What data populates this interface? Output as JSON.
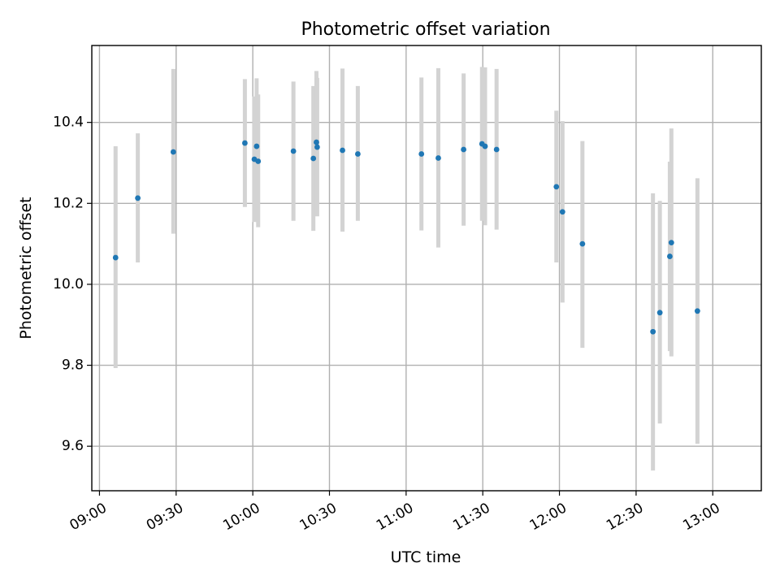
{
  "chart_data": {
    "type": "scatter",
    "title": "Photometric offset variation",
    "xlabel": "UTC time",
    "ylabel": "Photometric offset",
    "grid": true,
    "xlim_minutes": [
      537,
      799
    ],
    "ylim": [
      9.49,
      10.59
    ],
    "x_ticks": [
      {
        "minutes": 540,
        "label": "09:00"
      },
      {
        "minutes": 570,
        "label": "09:30"
      },
      {
        "minutes": 600,
        "label": "10:00"
      },
      {
        "minutes": 630,
        "label": "10:30"
      },
      {
        "minutes": 660,
        "label": "11:00"
      },
      {
        "minutes": 690,
        "label": "11:30"
      },
      {
        "minutes": 720,
        "label": "12:00"
      },
      {
        "minutes": 750,
        "label": "12:30"
      },
      {
        "minutes": 780,
        "label": "13:00"
      }
    ],
    "y_ticks": [
      {
        "value": 9.6,
        "label": "9.6"
      },
      {
        "value": 9.8,
        "label": "9.8"
      },
      {
        "value": 10.0,
        "label": "10.0"
      },
      {
        "value": 10.2,
        "label": "10.2"
      },
      {
        "value": 10.4,
        "label": "10.4"
      }
    ],
    "colors": {
      "point": "#1f77b4",
      "errorbar": "#d3d3d3",
      "grid": "#b0b0b0",
      "axes": "#000000"
    },
    "series": [
      {
        "name": "offset",
        "points": [
          {
            "t": 546.3,
            "y": 10.066,
            "lo": 9.793,
            "hi": 10.341
          },
          {
            "t": 555.0,
            "y": 10.213,
            "lo": 10.054,
            "hi": 10.373
          },
          {
            "t": 568.9,
            "y": 10.327,
            "lo": 10.125,
            "hi": 10.532
          },
          {
            "t": 596.9,
            "y": 10.349,
            "lo": 10.191,
            "hi": 10.507
          },
          {
            "t": 600.6,
            "y": 10.309,
            "lo": 10.154,
            "hi": 10.464
          },
          {
            "t": 601.5,
            "y": 10.341,
            "lo": 10.173,
            "hi": 10.509
          },
          {
            "t": 602.1,
            "y": 10.304,
            "lo": 10.141,
            "hi": 10.469
          },
          {
            "t": 615.9,
            "y": 10.329,
            "lo": 10.157,
            "hi": 10.501
          },
          {
            "t": 623.7,
            "y": 10.311,
            "lo": 10.132,
            "hi": 10.49
          },
          {
            "t": 624.9,
            "y": 10.351,
            "lo": 10.175,
            "hi": 10.527
          },
          {
            "t": 625.2,
            "y": 10.339,
            "lo": 10.168,
            "hi": 10.51
          },
          {
            "t": 635.1,
            "y": 10.331,
            "lo": 10.13,
            "hi": 10.533
          },
          {
            "t": 641.1,
            "y": 10.322,
            "lo": 10.157,
            "hi": 10.49
          },
          {
            "t": 666.0,
            "y": 10.322,
            "lo": 10.133,
            "hi": 10.511
          },
          {
            "t": 672.6,
            "y": 10.312,
            "lo": 10.091,
            "hi": 10.534
          },
          {
            "t": 682.5,
            "y": 10.333,
            "lo": 10.145,
            "hi": 10.521
          },
          {
            "t": 689.7,
            "y": 10.347,
            "lo": 10.157,
            "hi": 10.537
          },
          {
            "t": 690.9,
            "y": 10.341,
            "lo": 10.146,
            "hi": 10.536
          },
          {
            "t": 695.4,
            "y": 10.333,
            "lo": 10.135,
            "hi": 10.532
          },
          {
            "t": 718.8,
            "y": 10.241,
            "lo": 10.054,
            "hi": 10.429
          },
          {
            "t": 721.2,
            "y": 10.179,
            "lo": 9.955,
            "hi": 10.403
          },
          {
            "t": 729.0,
            "y": 10.1,
            "lo": 9.843,
            "hi": 10.354
          },
          {
            "t": 756.6,
            "y": 9.883,
            "lo": 9.54,
            "hi": 10.225
          },
          {
            "t": 759.3,
            "y": 9.93,
            "lo": 9.656,
            "hi": 10.206
          },
          {
            "t": 763.2,
            "y": 10.069,
            "lo": 9.835,
            "hi": 10.303
          },
          {
            "t": 763.8,
            "y": 10.103,
            "lo": 9.822,
            "hi": 10.385
          },
          {
            "t": 774.0,
            "y": 9.934,
            "lo": 9.606,
            "hi": 10.262
          }
        ]
      }
    ]
  }
}
